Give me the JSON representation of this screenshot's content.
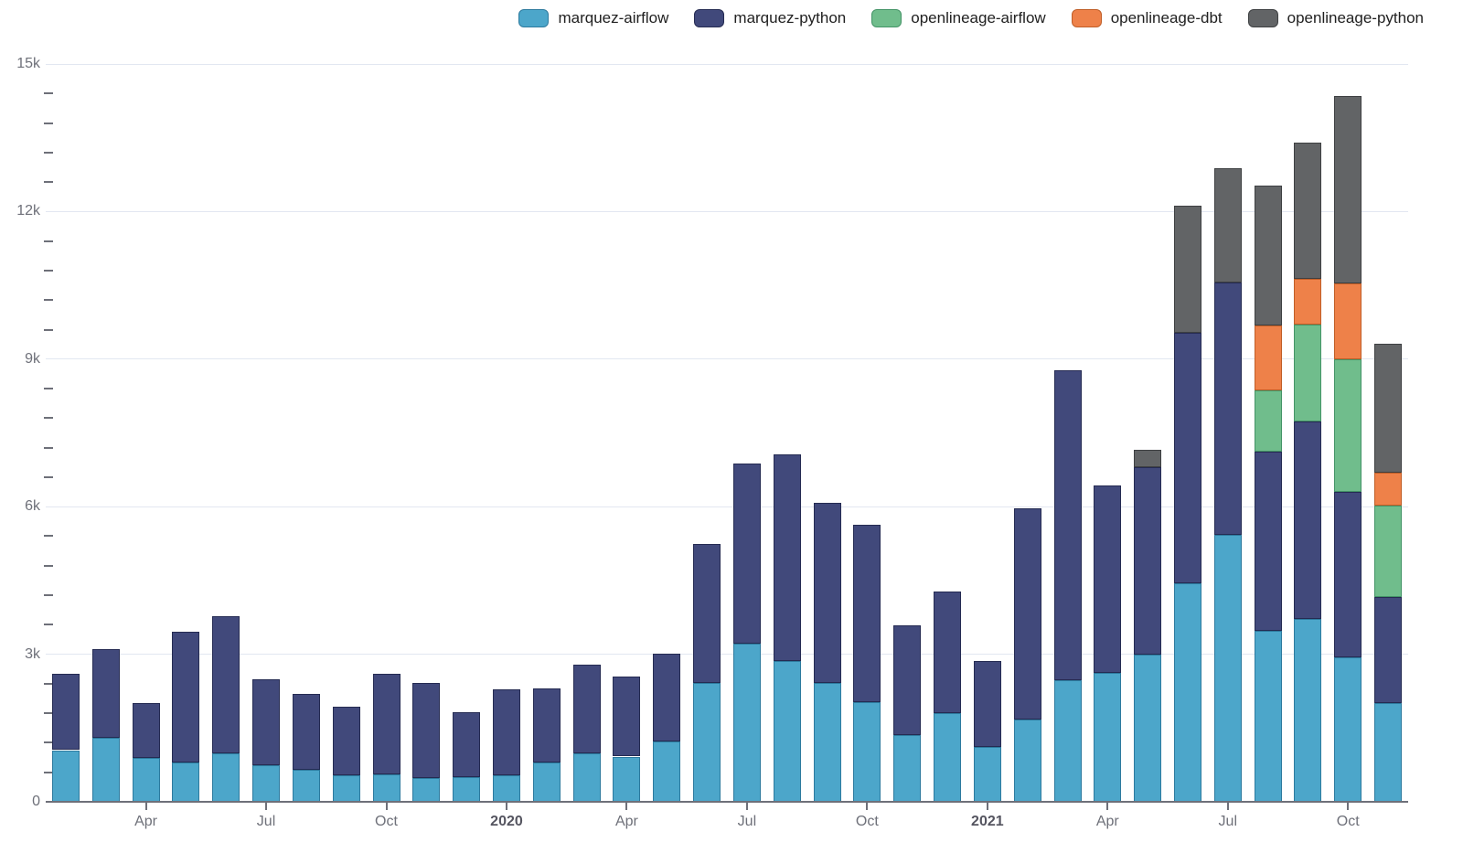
{
  "colors": {
    "background": "#ffffff",
    "gridline": "#E2E7F1",
    "axis_line": "#6E7079",
    "tick_text": "#6E7079",
    "year_tick_text": "#555560",
    "legend_text": "#212121"
  },
  "legend": {
    "items": [
      {
        "label": "marquez-airflow",
        "color": "#4CA6CA"
      },
      {
        "label": "marquez-python",
        "color": "#41497B"
      },
      {
        "label": "openlineage-airflow",
        "color": "#70BD8C"
      },
      {
        "label": "openlineage-dbt",
        "color": "#EE8149"
      },
      {
        "label": "openlineage-python",
        "color": "#626466"
      }
    ]
  },
  "chart_data": {
    "type": "bar",
    "stacked": true,
    "title": "",
    "xlabel": "",
    "ylabel": "",
    "grid": true,
    "legend_position": "top-right",
    "x": [
      "Feb 2019",
      "Mar 2019",
      "Apr 2019",
      "May 2019",
      "Jun 2019",
      "Jul 2019",
      "Aug 2019",
      "Sep 2019",
      "Oct 2019",
      "Nov 2019",
      "Dec 2019",
      "Jan 2020",
      "Feb 2020",
      "Mar 2020",
      "Apr 2020",
      "May 2020",
      "Jun 2020",
      "Jul 2020",
      "Aug 2020",
      "Sep 2020",
      "Oct 2020",
      "Nov 2020",
      "Dec 2020",
      "Jan 2021",
      "Feb 2021",
      "Mar 2021",
      "Apr 2021",
      "May 2021",
      "Jun 2021",
      "Jul 2021",
      "Aug 2021",
      "Sep 2021",
      "Oct 2021",
      "Nov 2021"
    ],
    "series": [
      {
        "name": "marquez-airflow",
        "color": "#4CA6CA",
        "border_color": "#2D7A9E",
        "values": [
          1050,
          1300,
          900,
          800,
          980,
          750,
          650,
          530,
          560,
          480,
          510,
          530,
          790,
          980,
          920,
          1230,
          2420,
          3210,
          2870,
          2410,
          2030,
          1350,
          1800,
          1110,
          1670,
          2480,
          2630,
          3000,
          4440,
          5420,
          3480,
          3720,
          2940,
          2010
        ]
      },
      {
        "name": "marquez-python",
        "color": "#41497B",
        "border_color": "#252B52",
        "values": [
          1550,
          1800,
          1100,
          2650,
          2800,
          1750,
          1540,
          1410,
          2050,
          1930,
          1320,
          1760,
          1520,
          1810,
          1620,
          1790,
          2820,
          3660,
          4200,
          3670,
          3600,
          2230,
          2470,
          1760,
          4300,
          6290,
          3800,
          3810,
          5090,
          5140,
          3630,
          4010,
          3360,
          2150
        ]
      },
      {
        "name": "openlineage-airflow",
        "color": "#70BD8C",
        "border_color": "#449467",
        "values": [
          0,
          0,
          0,
          0,
          0,
          0,
          0,
          0,
          0,
          0,
          0,
          0,
          0,
          0,
          0,
          0,
          0,
          0,
          0,
          0,
          0,
          0,
          0,
          0,
          0,
          0,
          0,
          0,
          0,
          0,
          1260,
          1970,
          2700,
          1860
        ]
      },
      {
        "name": "openlineage-dbt",
        "color": "#EE8149",
        "border_color": "#C05E27",
        "values": [
          0,
          0,
          0,
          0,
          0,
          0,
          0,
          0,
          0,
          0,
          0,
          0,
          0,
          0,
          0,
          0,
          0,
          0,
          0,
          0,
          0,
          0,
          0,
          0,
          0,
          0,
          0,
          0,
          0,
          0,
          1310,
          930,
          1530,
          680
        ]
      },
      {
        "name": "openlineage-python",
        "color": "#626466",
        "border_color": "#3E4042",
        "values": [
          0,
          0,
          0,
          0,
          0,
          0,
          0,
          0,
          0,
          0,
          0,
          0,
          0,
          0,
          0,
          0,
          0,
          0,
          0,
          0,
          0,
          0,
          0,
          0,
          0,
          0,
          0,
          340,
          2590,
          2330,
          2840,
          2770,
          3820,
          2610
        ]
      }
    ],
    "y_axis": {
      "min": 0,
      "max": 15000,
      "major_step": 3000,
      "minor_step": 600,
      "tick_labels": [
        "0",
        "3k",
        "6k",
        "9k",
        "12k",
        "15k"
      ]
    },
    "x_ticks": [
      {
        "index": 2,
        "label": "Apr",
        "bold": false
      },
      {
        "index": 5,
        "label": "Jul",
        "bold": false
      },
      {
        "index": 8,
        "label": "Oct",
        "bold": false
      },
      {
        "index": 11,
        "label": "2020",
        "bold": true
      },
      {
        "index": 14,
        "label": "Apr",
        "bold": false
      },
      {
        "index": 17,
        "label": "Jul",
        "bold": false
      },
      {
        "index": 20,
        "label": "Oct",
        "bold": false
      },
      {
        "index": 23,
        "label": "2021",
        "bold": true
      },
      {
        "index": 26,
        "label": "Apr",
        "bold": false
      },
      {
        "index": 29,
        "label": "Jul",
        "bold": false
      },
      {
        "index": 32,
        "label": "Oct",
        "bold": false
      }
    ]
  }
}
